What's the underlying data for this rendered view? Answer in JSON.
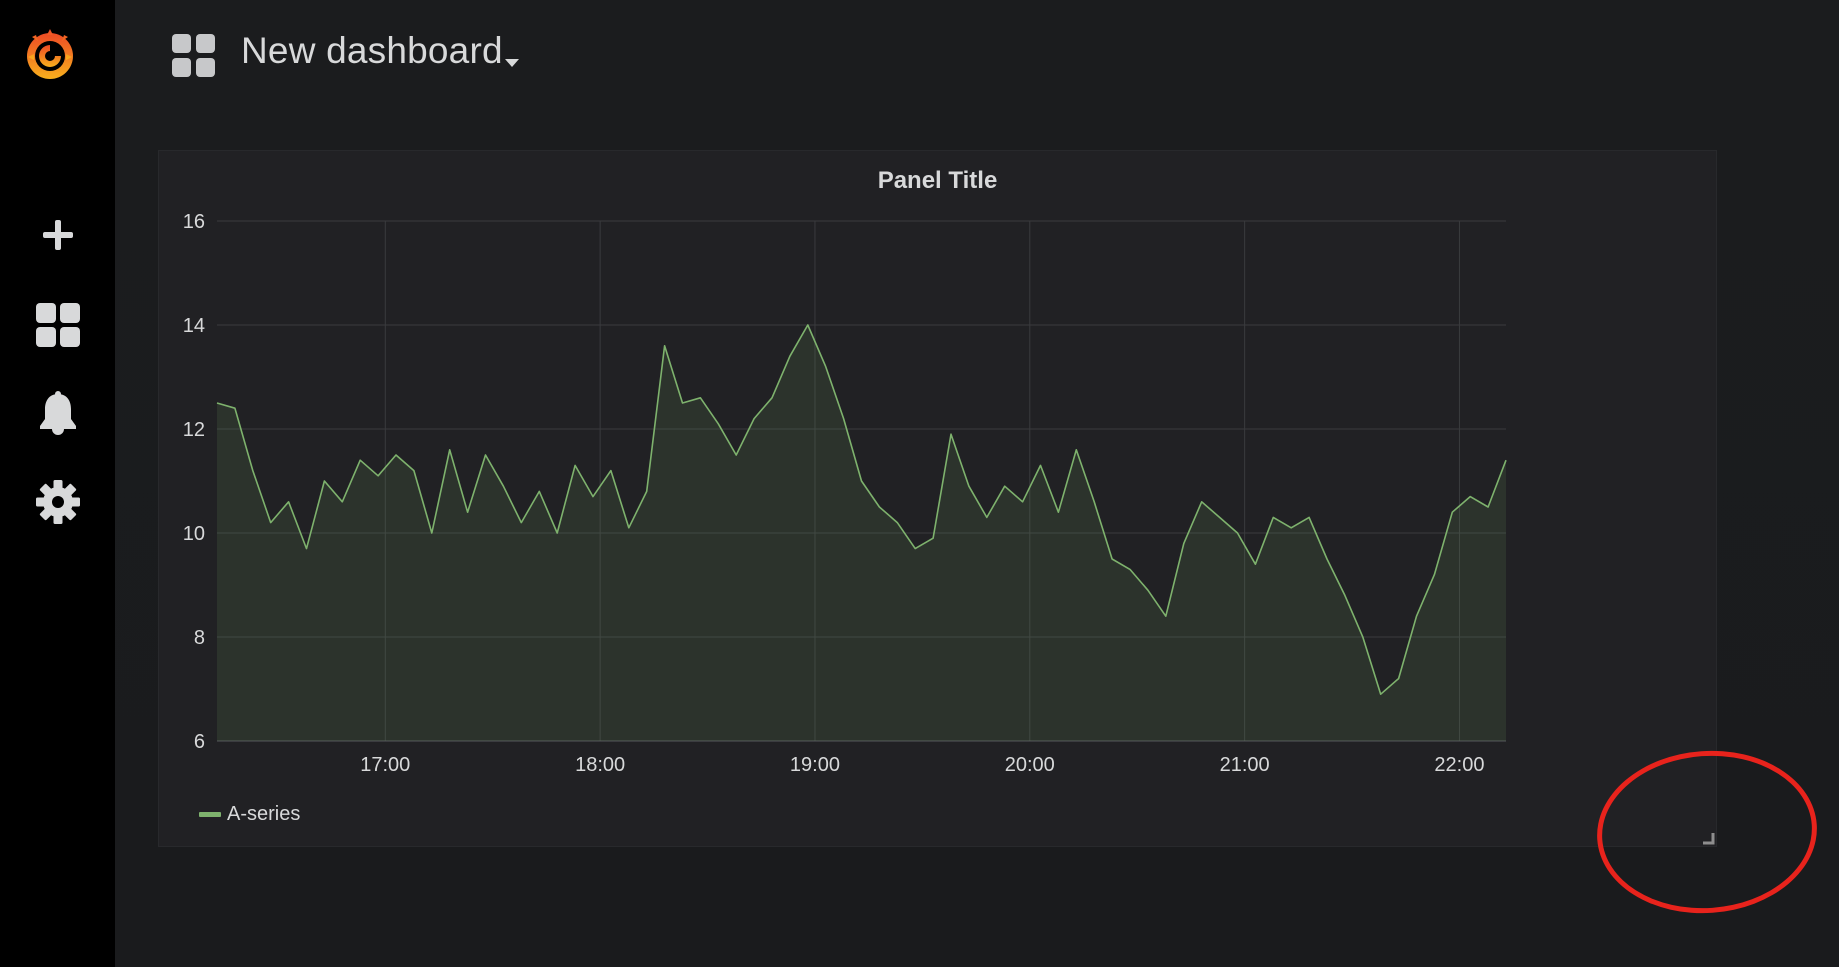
{
  "sidebar": {
    "logo_icon": "grafana-logo-icon",
    "items": [
      {
        "icon": "plus-icon",
        "name": "create"
      },
      {
        "icon": "dashboards-grid-icon",
        "name": "dashboards"
      },
      {
        "icon": "bell-icon",
        "name": "alerting"
      },
      {
        "icon": "gear-icon",
        "name": "configuration"
      }
    ]
  },
  "topbar": {
    "apps_icon": "dashboards-grid-icon",
    "dashboard_title": "New dashboard",
    "caret_icon": "caret-down-icon"
  },
  "panel": {
    "title": "Panel Title",
    "legend": [
      {
        "label": "A-series",
        "color": "#7eb26d"
      }
    ]
  },
  "annotation": {
    "shape": "red-circle",
    "color": "#e8231c",
    "target": "panel-resize-handle"
  },
  "chart_data": {
    "type": "area",
    "title": "Panel Title",
    "xlabel": "",
    "ylabel": "",
    "ylim": [
      6,
      16
    ],
    "yticks": [
      6,
      8,
      10,
      12,
      14,
      16
    ],
    "xlim": [
      "16:13",
      "22:13"
    ],
    "xticks": [
      "17:00",
      "18:00",
      "19:00",
      "20:00",
      "21:00",
      "22:00"
    ],
    "grid": true,
    "legend_position": "bottom-left",
    "series": [
      {
        "name": "A-series",
        "color": "#7eb26d",
        "x": [
          "16:13",
          "16:18",
          "16:23",
          "16:28",
          "16:33",
          "16:38",
          "16:43",
          "16:48",
          "16:53",
          "16:58",
          "17:03",
          "17:08",
          "17:13",
          "17:18",
          "17:23",
          "17:28",
          "17:33",
          "17:38",
          "17:43",
          "17:48",
          "17:53",
          "17:58",
          "18:03",
          "18:08",
          "18:13",
          "18:18",
          "18:23",
          "18:28",
          "18:33",
          "18:38",
          "18:43",
          "18:48",
          "18:53",
          "18:58",
          "19:03",
          "19:08",
          "19:13",
          "19:18",
          "19:23",
          "19:28",
          "19:33",
          "19:38",
          "19:43",
          "19:48",
          "19:53",
          "19:58",
          "20:03",
          "20:08",
          "20:13",
          "20:18",
          "20:23",
          "20:28",
          "20:33",
          "20:38",
          "20:43",
          "20:48",
          "20:53",
          "20:58",
          "21:03",
          "21:08",
          "21:13",
          "21:18",
          "21:23",
          "21:28",
          "21:33",
          "21:38",
          "21:43",
          "21:48",
          "21:53",
          "21:58",
          "22:03",
          "22:08",
          "22:13"
        ],
        "values": [
          12.5,
          12.4,
          11.2,
          10.2,
          10.6,
          9.7,
          11.0,
          10.6,
          11.4,
          11.1,
          11.5,
          11.2,
          10.0,
          11.6,
          10.4,
          11.5,
          10.9,
          10.2,
          10.8,
          10.0,
          11.3,
          10.7,
          11.2,
          10.1,
          10.8,
          13.6,
          12.5,
          12.6,
          12.1,
          11.5,
          12.2,
          12.6,
          13.4,
          14.0,
          13.2,
          12.2,
          11.0,
          10.5,
          10.2,
          9.7,
          9.9,
          11.9,
          10.9,
          10.3,
          10.9,
          10.6,
          11.3,
          10.4,
          11.6,
          10.6,
          9.5,
          9.3,
          8.9,
          8.4,
          9.8,
          10.6,
          10.3,
          10.0,
          9.4,
          10.3,
          10.1,
          10.3,
          9.5,
          8.8,
          8.0,
          6.9,
          7.2,
          8.4,
          9.2,
          10.4,
          10.7,
          10.5,
          11.4
        ]
      }
    ]
  }
}
